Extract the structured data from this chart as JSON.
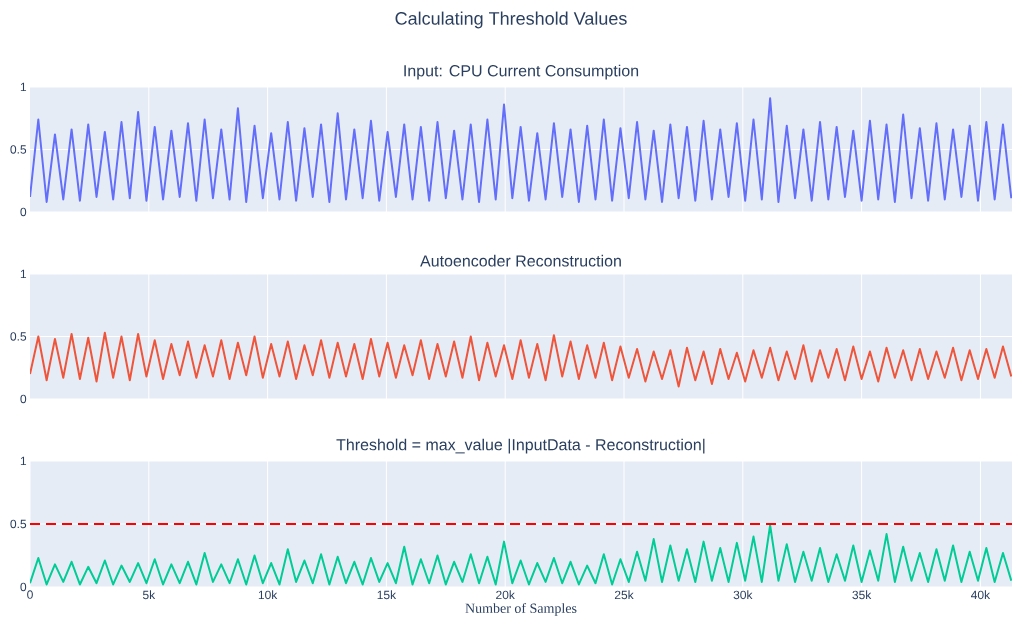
{
  "chart_data": [
    {
      "type": "line",
      "title": "Input: CPU Current Consumption",
      "annotations": [
        "Calculating Threshold Values"
      ],
      "color": "#636efa",
      "xlim": [
        0,
        41330
      ],
      "ylim": [
        0,
        1
      ],
      "xticks": [
        {
          "value": 5000,
          "label": null
        },
        {
          "value": 10000,
          "label": null
        },
        {
          "value": 15000,
          "label": null
        },
        {
          "value": 20000,
          "label": null
        },
        {
          "value": 25000,
          "label": null
        },
        {
          "value": 30000,
          "label": null
        },
        {
          "value": 35000,
          "label": null
        },
        {
          "value": 40000,
          "label": null
        }
      ],
      "yticks": [
        0,
        0.5,
        1
      ],
      "grid": true,
      "tick_labels": "y",
      "x": [
        0,
        350,
        700,
        1050,
        1400,
        1750,
        2100,
        2450,
        2800,
        3150,
        3500,
        3850,
        4200,
        4550,
        4900,
        5250,
        5600,
        5950,
        6300,
        6650,
        7000,
        7350,
        7700,
        8050,
        8400,
        8750,
        9100,
        9450,
        9800,
        10150,
        10500,
        10850,
        11200,
        11550,
        11900,
        12250,
        12600,
        12950,
        13300,
        13650,
        14000,
        14350,
        14700,
        15050,
        15400,
        15750,
        16100,
        16450,
        16800,
        17150,
        17500,
        17850,
        18200,
        18550,
        18900,
        19250,
        19600,
        19950,
        20300,
        20650,
        21000,
        21350,
        21700,
        22050,
        22400,
        22750,
        23100,
        23450,
        23800,
        24150,
        24500,
        24850,
        25200,
        25550,
        25900,
        26250,
        26600,
        26950,
        27300,
        27650,
        28000,
        28350,
        28700,
        29050,
        29400,
        29750,
        30100,
        30450,
        30800,
        31150,
        31500,
        31850,
        32200,
        32550,
        32900,
        33250,
        33600,
        33950,
        34300,
        34650,
        35000,
        35350,
        35700,
        36050,
        36400,
        36750,
        37100,
        37450,
        37800,
        38150,
        38500,
        38850,
        39200,
        39550,
        39900,
        40250,
        40600,
        40950,
        41300
      ],
      "values": [
        0.12,
        0.74,
        0.08,
        0.62,
        0.1,
        0.66,
        0.09,
        0.7,
        0.12,
        0.64,
        0.1,
        0.72,
        0.11,
        0.8,
        0.09,
        0.68,
        0.1,
        0.65,
        0.12,
        0.71,
        0.09,
        0.74,
        0.11,
        0.66,
        0.1,
        0.83,
        0.08,
        0.69,
        0.11,
        0.63,
        0.1,
        0.72,
        0.09,
        0.67,
        0.12,
        0.7,
        0.08,
        0.79,
        0.1,
        0.66,
        0.11,
        0.73,
        0.09,
        0.64,
        0.12,
        0.7,
        0.1,
        0.68,
        0.09,
        0.72,
        0.11,
        0.65,
        0.1,
        0.7,
        0.08,
        0.74,
        0.1,
        0.86,
        0.11,
        0.68,
        0.09,
        0.63,
        0.1,
        0.71,
        0.12,
        0.66,
        0.08,
        0.69,
        0.1,
        0.74,
        0.09,
        0.67,
        0.11,
        0.72,
        0.1,
        0.65,
        0.08,
        0.7,
        0.11,
        0.68,
        0.09,
        0.73,
        0.1,
        0.66,
        0.12,
        0.71,
        0.09,
        0.74,
        0.1,
        0.91,
        0.08,
        0.69,
        0.11,
        0.66,
        0.09,
        0.72,
        0.1,
        0.68,
        0.12,
        0.65,
        0.09,
        0.73,
        0.1,
        0.7,
        0.08,
        0.78,
        0.11,
        0.67,
        0.09,
        0.71,
        0.1,
        0.66,
        0.12,
        0.69,
        0.09,
        0.72,
        0.1,
        0.7,
        0.11
      ]
    },
    {
      "type": "line",
      "title": "Autoencoder Reconstruction",
      "color": "#ef553b",
      "xlim": [
        0,
        41330
      ],
      "ylim": [
        0,
        1
      ],
      "xticks": [
        {
          "value": 5000,
          "label": null
        },
        {
          "value": 10000,
          "label": null
        },
        {
          "value": 15000,
          "label": null
        },
        {
          "value": 20000,
          "label": null
        },
        {
          "value": 25000,
          "label": null
        },
        {
          "value": 30000,
          "label": null
        },
        {
          "value": 35000,
          "label": null
        },
        {
          "value": 40000,
          "label": null
        }
      ],
      "yticks": [
        0,
        0.5,
        1
      ],
      "grid": true,
      "tick_labels": "y",
      "x": [
        0,
        350,
        700,
        1050,
        1400,
        1750,
        2100,
        2450,
        2800,
        3150,
        3500,
        3850,
        4200,
        4550,
        4900,
        5250,
        5600,
        5950,
        6300,
        6650,
        7000,
        7350,
        7700,
        8050,
        8400,
        8750,
        9100,
        9450,
        9800,
        10150,
        10500,
        10850,
        11200,
        11550,
        11900,
        12250,
        12600,
        12950,
        13300,
        13650,
        14000,
        14350,
        14700,
        15050,
        15400,
        15750,
        16100,
        16450,
        16800,
        17150,
        17500,
        17850,
        18200,
        18550,
        18900,
        19250,
        19600,
        19950,
        20300,
        20650,
        21000,
        21350,
        21700,
        22050,
        22400,
        22750,
        23100,
        23450,
        23800,
        24150,
        24500,
        24850,
        25200,
        25550,
        25900,
        26250,
        26600,
        26950,
        27300,
        27650,
        28000,
        28350,
        28700,
        29050,
        29400,
        29750,
        30100,
        30450,
        30800,
        31150,
        31500,
        31850,
        32200,
        32550,
        32900,
        33250,
        33600,
        33950,
        34300,
        34650,
        35000,
        35350,
        35700,
        36050,
        36400,
        36750,
        37100,
        37450,
        37800,
        38150,
        38500,
        38850,
        39200,
        39550,
        39900,
        40250,
        40600,
        40950,
        41300
      ],
      "values": [
        0.2,
        0.5,
        0.15,
        0.48,
        0.17,
        0.52,
        0.16,
        0.49,
        0.14,
        0.53,
        0.17,
        0.5,
        0.15,
        0.52,
        0.18,
        0.47,
        0.16,
        0.44,
        0.19,
        0.46,
        0.17,
        0.43,
        0.18,
        0.47,
        0.16,
        0.45,
        0.19,
        0.5,
        0.17,
        0.44,
        0.18,
        0.46,
        0.16,
        0.43,
        0.19,
        0.47,
        0.17,
        0.45,
        0.18,
        0.44,
        0.16,
        0.48,
        0.18,
        0.45,
        0.17,
        0.43,
        0.19,
        0.47,
        0.16,
        0.44,
        0.18,
        0.46,
        0.17,
        0.5,
        0.15,
        0.45,
        0.18,
        0.43,
        0.16,
        0.47,
        0.17,
        0.44,
        0.15,
        0.51,
        0.18,
        0.46,
        0.16,
        0.43,
        0.17,
        0.45,
        0.15,
        0.42,
        0.17,
        0.4,
        0.14,
        0.38,
        0.16,
        0.39,
        0.1,
        0.41,
        0.15,
        0.38,
        0.12,
        0.4,
        0.16,
        0.37,
        0.14,
        0.39,
        0.17,
        0.41,
        0.15,
        0.38,
        0.16,
        0.43,
        0.14,
        0.39,
        0.17,
        0.4,
        0.15,
        0.42,
        0.16,
        0.38,
        0.14,
        0.41,
        0.17,
        0.39,
        0.15,
        0.4,
        0.16,
        0.38,
        0.17,
        0.41,
        0.15,
        0.39,
        0.16,
        0.4,
        0.17,
        0.42,
        0.18
      ]
    },
    {
      "type": "line",
      "title": "Threshold = max_value |InputData - Reconstruction|",
      "xlabel": "Number of Samples",
      "color": "#00cc96",
      "xlim": [
        0,
        41330
      ],
      "ylim": [
        0,
        1
      ],
      "xticks": [
        0,
        {
          "value": 5000,
          "label": "5k"
        },
        {
          "value": 10000,
          "label": "10k"
        },
        {
          "value": 15000,
          "label": "15k"
        },
        {
          "value": 20000,
          "label": "20k"
        },
        {
          "value": 25000,
          "label": "25k"
        },
        {
          "value": 30000,
          "label": "30k"
        },
        {
          "value": 35000,
          "label": "35k"
        },
        {
          "value": 40000,
          "label": "40k"
        }
      ],
      "yticks": [
        0,
        0.5,
        1
      ],
      "grid": true,
      "ref_lines": [
        {
          "axis": "y",
          "value": 0.5,
          "color": "#ff0000",
          "line_style": "dashed"
        }
      ],
      "x": [
        0,
        350,
        700,
        1050,
        1400,
        1750,
        2100,
        2450,
        2800,
        3150,
        3500,
        3850,
        4200,
        4550,
        4900,
        5250,
        5600,
        5950,
        6300,
        6650,
        7000,
        7350,
        7700,
        8050,
        8400,
        8750,
        9100,
        9450,
        9800,
        10150,
        10500,
        10850,
        11200,
        11550,
        11900,
        12250,
        12600,
        12950,
        13300,
        13650,
        14000,
        14350,
        14700,
        15050,
        15400,
        15750,
        16100,
        16450,
        16800,
        17150,
        17500,
        17850,
        18200,
        18550,
        18900,
        19250,
        19600,
        19950,
        20300,
        20650,
        21000,
        21350,
        21700,
        22050,
        22400,
        22750,
        23100,
        23450,
        23800,
        24150,
        24500,
        24850,
        25200,
        25550,
        25900,
        26250,
        26600,
        26950,
        27300,
        27650,
        28000,
        28350,
        28700,
        29050,
        29400,
        29750,
        30100,
        30450,
        30800,
        31150,
        31500,
        31850,
        32200,
        32550,
        32900,
        33250,
        33600,
        33950,
        34300,
        34650,
        35000,
        35350,
        35700,
        36050,
        36400,
        36750,
        37100,
        37450,
        37800,
        38150,
        38500,
        38850,
        39200,
        39550,
        39900,
        40250,
        40600,
        40950,
        41300
      ],
      "values": [
        0.03,
        0.23,
        0.02,
        0.18,
        0.04,
        0.2,
        0.02,
        0.16,
        0.03,
        0.21,
        0.02,
        0.17,
        0.04,
        0.19,
        0.03,
        0.22,
        0.02,
        0.18,
        0.03,
        0.2,
        0.02,
        0.27,
        0.04,
        0.18,
        0.03,
        0.22,
        0.02,
        0.25,
        0.03,
        0.19,
        0.02,
        0.3,
        0.04,
        0.21,
        0.03,
        0.26,
        0.02,
        0.24,
        0.03,
        0.2,
        0.02,
        0.23,
        0.04,
        0.19,
        0.03,
        0.32,
        0.02,
        0.22,
        0.03,
        0.25,
        0.02,
        0.2,
        0.04,
        0.26,
        0.03,
        0.24,
        0.02,
        0.36,
        0.03,
        0.21,
        0.02,
        0.19,
        0.04,
        0.23,
        0.03,
        0.2,
        0.02,
        0.17,
        0.03,
        0.26,
        0.02,
        0.22,
        0.04,
        0.28,
        0.05,
        0.38,
        0.04,
        0.33,
        0.05,
        0.3,
        0.04,
        0.36,
        0.05,
        0.31,
        0.04,
        0.35,
        0.05,
        0.4,
        0.04,
        0.49,
        0.05,
        0.34,
        0.04,
        0.28,
        0.05,
        0.31,
        0.04,
        0.26,
        0.05,
        0.33,
        0.04,
        0.29,
        0.05,
        0.42,
        0.04,
        0.32,
        0.05,
        0.27,
        0.04,
        0.3,
        0.05,
        0.33,
        0.04,
        0.28,
        0.05,
        0.31,
        0.04,
        0.27,
        0.05
      ]
    }
  ]
}
